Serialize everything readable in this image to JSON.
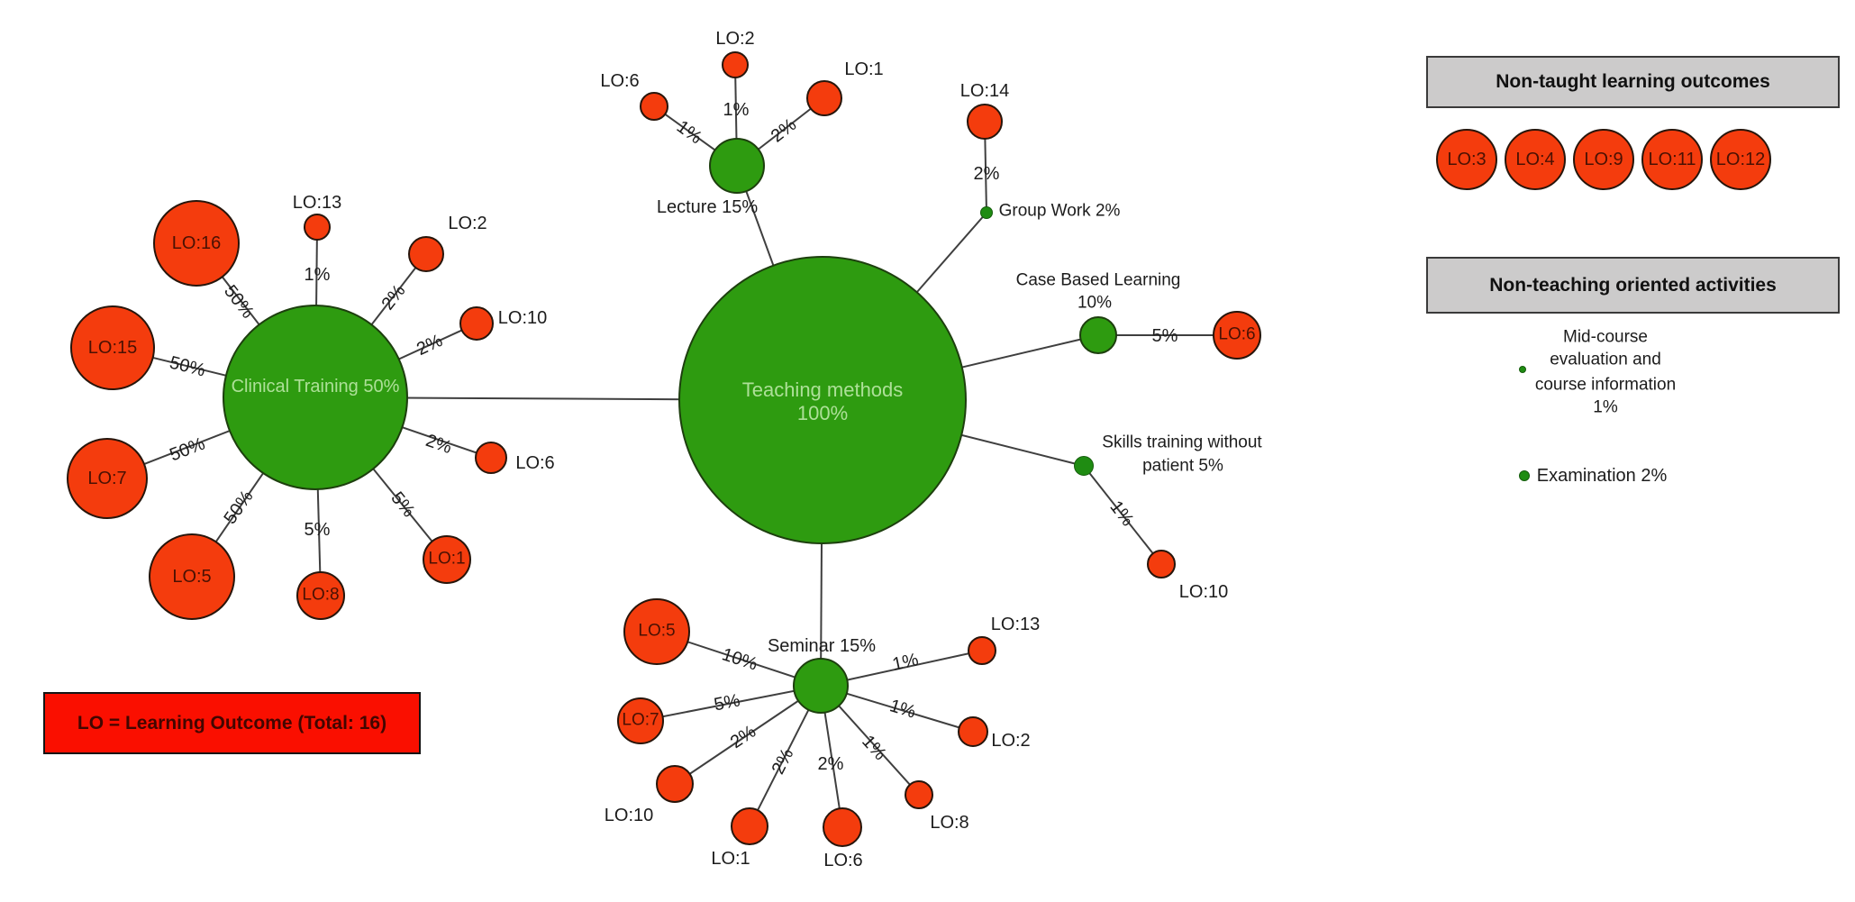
{
  "colors": {
    "green": "#2e9b10",
    "red": "#f43c0d",
    "legend_red": "#fa0f00",
    "light_green_text": "#ade098",
    "gray_header": "#cccbcb",
    "line": "#3f3f3f"
  },
  "legend": {
    "text": "LO = Learning Outcome (Total: 16)"
  },
  "diagram": {
    "center": {
      "label": "Teaching methods",
      "pct": "100%"
    },
    "clusters": {
      "clinical": {
        "label": "Clinical Training 50%",
        "nodes": [
          {
            "lo": "LO:16",
            "pct": "50%"
          },
          {
            "lo": "LO:13",
            "pct": "1%"
          },
          {
            "lo": "LO:2",
            "pct": "2%"
          },
          {
            "lo": "LO:10",
            "pct": "2%"
          },
          {
            "lo": "LO:15",
            "pct": "50%"
          },
          {
            "lo": "LO:7",
            "pct": "50%"
          },
          {
            "lo": "LO:6",
            "pct": "2%"
          },
          {
            "lo": "LO:5",
            "pct": "50%"
          },
          {
            "lo": "LO:8",
            "pct": "5%"
          },
          {
            "lo": "LO:1",
            "pct": "5%"
          }
        ]
      },
      "lecture": {
        "label": "Lecture 15%",
        "nodes": [
          {
            "lo": "LO:6",
            "pct": "1%"
          },
          {
            "lo": "LO:2",
            "pct": "1%"
          },
          {
            "lo": "LO:1",
            "pct": "2%"
          }
        ]
      },
      "group_work": {
        "label": "Group Work 2%",
        "nodes": [
          {
            "lo": "LO:14",
            "pct": "2%"
          }
        ]
      },
      "case_based": {
        "lines": [
          "Case Based Learning",
          "10%"
        ],
        "nodes": [
          {
            "lo": "LO:6",
            "pct": "5%"
          }
        ]
      },
      "skills": {
        "lines": [
          "Skills training without",
          "patient 5%"
        ],
        "nodes": [
          {
            "lo": "LO:10",
            "pct": "1%"
          }
        ]
      },
      "seminar": {
        "label": "Seminar 15%",
        "nodes": [
          {
            "lo": "LO:5",
            "pct": "10%"
          },
          {
            "lo": "LO:7",
            "pct": "5%"
          },
          {
            "lo": "LO:10",
            "pct": "2%"
          },
          {
            "lo": "LO:1",
            "pct": "2%"
          },
          {
            "lo": "LO:6",
            "pct": "2%"
          },
          {
            "lo": "LO:8",
            "pct": "1%"
          },
          {
            "lo": "LO:2",
            "pct": "1%"
          },
          {
            "lo": "LO:13",
            "pct": "1%"
          }
        ]
      }
    }
  },
  "panels": {
    "non_taught": {
      "title": "Non-taught learning outcomes",
      "items": [
        "LO:3",
        "LO:4",
        "LO:9",
        "LO:11",
        "LO:12"
      ]
    },
    "non_teaching": {
      "title": "Non-teaching oriented activities",
      "activities": [
        {
          "lines": [
            "Mid-course",
            "evaluation and",
            "course information",
            "1%"
          ]
        },
        {
          "lines": [
            "Examination 2%"
          ]
        }
      ]
    }
  }
}
